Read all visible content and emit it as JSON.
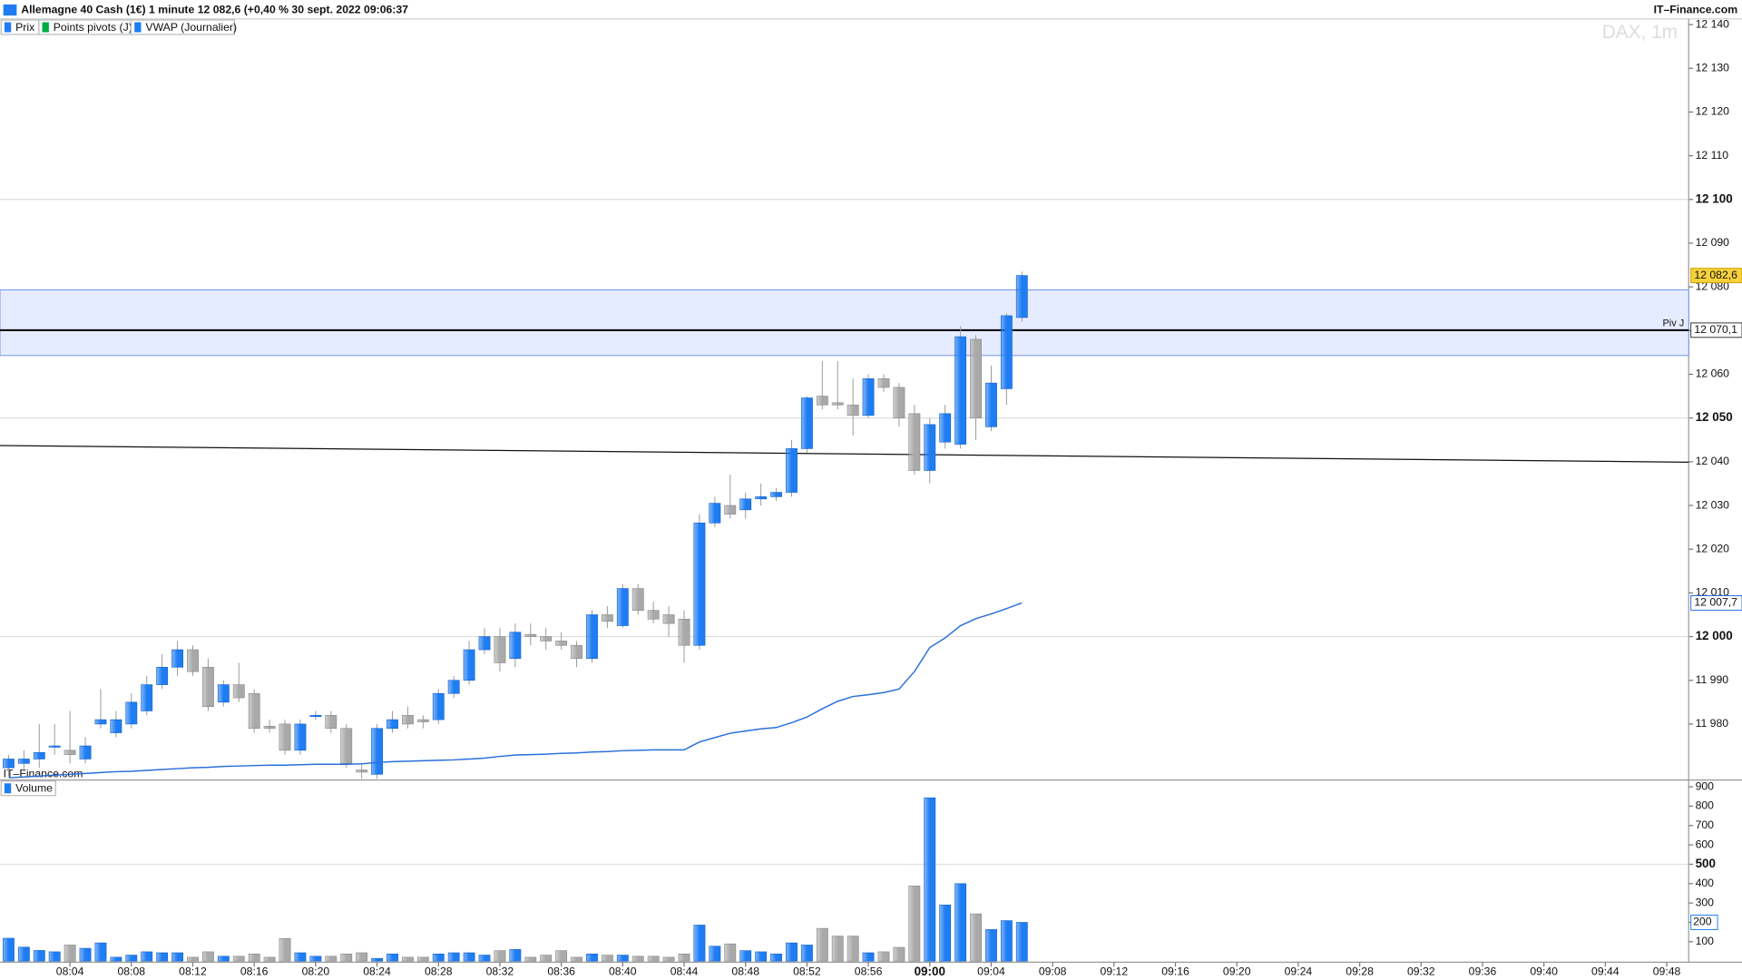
{
  "header": {
    "title": "Allemagne 40 Cash (1€) 1 minute 12 082,6 (+0,40 % 30 sept. 2022 09:06:37",
    "brand": "IT–Finance.com"
  },
  "chart_data": {
    "type": "candlestick",
    "watermark": "DAX, 1m",
    "source_label": "IT–Finance.com",
    "legend": [
      "Prix",
      "Points pivots (J)",
      "VWAP (Journalier)"
    ],
    "x": [
      "08:00",
      "08:01",
      "08:02",
      "08:03",
      "08:04",
      "08:05",
      "08:06",
      "08:07",
      "08:08",
      "08:09",
      "08:10",
      "08:11",
      "08:12",
      "08:13",
      "08:14",
      "08:15",
      "08:16",
      "08:17",
      "08:18",
      "08:19",
      "08:20",
      "08:21",
      "08:22",
      "08:23",
      "08:24",
      "08:25",
      "08:26",
      "08:27",
      "08:28",
      "08:29",
      "08:30",
      "08:31",
      "08:32",
      "08:33",
      "08:34",
      "08:35",
      "08:36",
      "08:37",
      "08:38",
      "08:39",
      "08:40",
      "08:41",
      "08:42",
      "08:43",
      "08:44",
      "08:45",
      "08:46",
      "08:47",
      "08:48",
      "08:49",
      "08:50",
      "08:51",
      "08:52",
      "08:53",
      "08:54",
      "08:55",
      "08:56",
      "08:57",
      "08:58",
      "08:59",
      "09:00",
      "09:01",
      "09:02",
      "09:03",
      "09:04",
      "09:05",
      "09:06"
    ],
    "open": [
      11970,
      11971,
      11972,
      11975,
      11974,
      11972,
      11980,
      11978,
      11980,
      11983,
      11989,
      11993,
      11997,
      11993,
      11985,
      11989,
      11987,
      11979.5,
      11980,
      11974,
      11982,
      11982,
      11979,
      11969.5,
      11968.5,
      11979,
      11982,
      11981,
      11981,
      11987,
      11990,
      11997,
      12000,
      11995,
      12000.5,
      12000,
      11999,
      11998,
      11995,
      12005,
      12002.5,
      12011,
      12006,
      12005,
      12004,
      11998,
      12026,
      12030,
      12029,
      12031.5,
      12032,
      12033,
      12043,
      12055,
      12053.5,
      12053,
      12050.6,
      12059,
      12057,
      12051,
      12038,
      12044.5,
      12044,
      12068,
      12048,
      12056.7,
      12073
    ],
    "high": [
      11973,
      11974,
      11980,
      11980,
      11983,
      11977,
      11988,
      11983,
      11987,
      11991,
      11996,
      11999,
      11998,
      11995,
      11990,
      11994,
      11988,
      11981,
      11981,
      11981,
      11983,
      11983,
      11980,
      11971,
      11980,
      11983,
      11984,
      11982,
      11988,
      11991,
      11999,
      12002,
      12002,
      12003,
      12003,
      12002,
      12001,
      11999,
      12006,
      12007,
      12012,
      12012,
      12008,
      12007,
      12006,
      12028,
      12032,
      12037,
      12033,
      12035,
      12034,
      12045,
      12055,
      12063,
      12063,
      12059,
      12060,
      12060,
      12058,
      12053,
      12050,
      12053,
      12071,
      12069,
      12062,
      12074,
      12083.5
    ],
    "low": [
      11968,
      11969,
      11970,
      11973,
      11971,
      11971,
      11979,
      11977,
      11979,
      11982,
      11988,
      11991,
      11991,
      11983,
      11984,
      11985,
      11978,
      11978,
      11973,
      11973,
      11981,
      11978,
      11970,
      11967.5,
      11967.5,
      11978,
      11979,
      11979,
      11980,
      11986,
      11989,
      11996,
      11992,
      11993,
      11998,
      11997,
      11997,
      11993,
      11994,
      12002,
      12002,
      12005,
      12003,
      12000,
      11994,
      11997,
      12025,
      12027,
      12027,
      12030,
      12031,
      12032,
      12042,
      12052,
      12052,
      12046,
      12050,
      12056,
      12048,
      12037,
      12035,
      12043,
      12043,
      12045,
      12047,
      12053,
      12072
    ],
    "close": [
      11972,
      11972,
      11973.5,
      11975,
      11973,
      11975,
      11981,
      11981,
      11985,
      11989,
      11993,
      11997,
      11992,
      11984,
      11989,
      11986,
      11979,
      11979,
      11974,
      11980,
      11982,
      11979,
      11971,
      11969,
      11979,
      11981,
      11980,
      11980.5,
      11987,
      11990,
      11997,
      12000,
      11994,
      12001,
      12000,
      11999,
      11998,
      11995,
      12005,
      12003.5,
      12011,
      12006,
      12004,
      12003,
      11998,
      12026,
      12030.5,
      12028,
      12031.5,
      12032,
      12033,
      12043,
      12054.6,
      12053,
      12053,
      12050.6,
      12059,
      12057,
      12050,
      12038,
      12048.5,
      12051,
      12068.6,
      12050,
      12058,
      12073.4,
      12082.6
    ],
    "up_color": "#1f7df3",
    "down_color": "#a9a9a9",
    "ylim": [
      11967.2,
      12141.3
    ],
    "yticks": [
      {
        "value": 11980,
        "label": "11 980"
      },
      {
        "value": 11990,
        "label": "11 990"
      },
      {
        "value": 12000,
        "label": "12 000"
      },
      {
        "value": 12010,
        "label": "12 010"
      },
      {
        "value": 12020,
        "label": "12 020"
      },
      {
        "value": 12030,
        "label": "12 030"
      },
      {
        "value": 12040,
        "label": "12 040"
      },
      {
        "value": 12050,
        "label": "12 050"
      },
      {
        "value": 12060,
        "label": "12 060"
      },
      {
        "value": 12070,
        "label": "12 070"
      },
      {
        "value": 12080,
        "label": "12 080"
      },
      {
        "value": 12090,
        "label": "12 090"
      },
      {
        "value": 12100,
        "label": "12 100"
      },
      {
        "value": 12110,
        "label": "12 110"
      },
      {
        "value": 12120,
        "label": "12 120"
      },
      {
        "value": 12130,
        "label": "12 130"
      },
      {
        "value": 12140,
        "label": "12 140"
      }
    ],
    "last": {
      "value": 12082.6,
      "label": "12 082,6"
    },
    "pivot": {
      "name": "Piv J",
      "value": 12070.1,
      "label": "12 070,1"
    },
    "pivot_band": [
      12064.3,
      12079.3
    ],
    "trendline": [
      12043.7,
      12039.9
    ],
    "vwap": {
      "values": [
        11967.7,
        11967.9,
        11968.1,
        11968.3,
        11968.5,
        11968.7,
        11968.9,
        11969.1,
        11969.2,
        11969.4,
        11969.6,
        11969.8,
        11970.0,
        11970.1,
        11970.3,
        11970.4,
        11970.5,
        11970.6,
        11970.6,
        11970.7,
        11970.8,
        11970.8,
        11970.8,
        11970.9,
        11971.2,
        11971.4,
        11971.5,
        11971.6,
        11971.7,
        11971.8,
        11972.0,
        11972.2,
        11972.6,
        11972.9,
        11973.0,
        11973.1,
        11973.3,
        11973.4,
        11973.6,
        11973.7,
        11973.9,
        11974.0,
        11974.1,
        11974.1,
        11974.1,
        11975.9,
        11976.9,
        11977.9,
        11978.4,
        11978.9,
        11979.2,
        11980.3,
        11981.6,
        11983.5,
        11985.2,
        11986.3,
        11986.7,
        11987.2,
        11988.0,
        11992.0,
        11997.5,
        11999.7,
        12002.5,
        12004.1,
        12005.2,
        12006.4,
        12007.7
      ],
      "value_label": "12 007,7",
      "color": "#2a6fdb"
    },
    "xticks": [
      "08:04",
      "08:08",
      "08:12",
      "08:16",
      "08:20",
      "08:24",
      "08:28",
      "08:32",
      "08:36",
      "08:40",
      "08:44",
      "08:48",
      "08:52",
      "08:56",
      "09:00",
      "09:04",
      "09:08",
      "09:12",
      "09:16",
      "09:20",
      "09:24",
      "09:28",
      "09:32",
      "09:36",
      "09:40",
      "09:44",
      "09:48"
    ],
    "volume": {
      "name": "Volume",
      "values": [
        118,
        72,
        55,
        48,
        83,
        66,
        94,
        20,
        31,
        48,
        43,
        43,
        20,
        48,
        25,
        25,
        37,
        20,
        117,
        43,
        25,
        25,
        37,
        43,
        14,
        37,
        20,
        20,
        37,
        43,
        43,
        31,
        54,
        60,
        20,
        31,
        54,
        20,
        37,
        31,
        31,
        25,
        25,
        20,
        37,
        186,
        77,
        89,
        54,
        48,
        37,
        94,
        83,
        169,
        129,
        129,
        43,
        48,
        71,
        388,
        843,
        290,
        400,
        244,
        163,
        209,
        200
      ],
      "ylim": [
        0,
        935
      ],
      "yticks": [
        100,
        200,
        300,
        400,
        500,
        600,
        700,
        800,
        900
      ],
      "last_label": "200"
    }
  }
}
